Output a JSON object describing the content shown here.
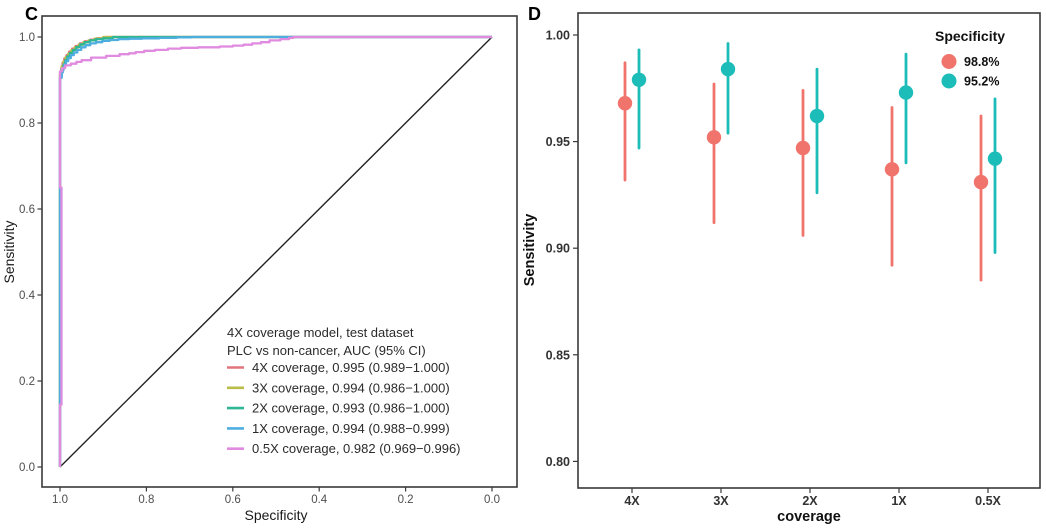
{
  "figure": {
    "panelC_label": "C",
    "panelD_label": "D"
  },
  "chart_data": [
    {
      "id": "C",
      "type": "line",
      "subtype": "roc",
      "xlabel": "Specificity",
      "ylabel": "Sensitivity",
      "x_reversed": true,
      "x_ticks": [
        "1.0",
        "0.8",
        "0.6",
        "0.4",
        "0.2",
        "0.0"
      ],
      "y_ticks": [
        "0.0",
        "0.2",
        "0.4",
        "0.6",
        "0.8",
        "1.0"
      ],
      "diagonal_reference_line": true,
      "legend": {
        "title_lines": [
          "4X coverage model, test dataset",
          "PLC vs non-cancer, AUC (95% CI)"
        ]
      },
      "series": [
        {
          "name": "4X coverage",
          "label": "4X coverage, 0.995 (0.989−1.000)",
          "auc": "0.995",
          "ci": "0.989−1.000",
          "color": "#E2747C",
          "points": [
            [
              1,
              0
            ],
            [
              1,
              0.912
            ],
            [
              0.997,
              0.928
            ],
            [
              0.994,
              0.94
            ],
            [
              0.99,
              0.95
            ],
            [
              0.985,
              0.958
            ],
            [
              0.979,
              0.966
            ],
            [
              0.972,
              0.973
            ],
            [
              0.964,
              0.979
            ],
            [
              0.954,
              0.985
            ],
            [
              0.943,
              0.99
            ],
            [
              0.93,
              0.994
            ],
            [
              0.915,
              0.997
            ],
            [
              0.895,
              1.0
            ],
            [
              0,
              1
            ]
          ]
        },
        {
          "name": "3X coverage",
          "label": "3X coverage, 0.994 (0.986−1.000)",
          "auc": "0.994",
          "ci": "0.986−1.000",
          "color": "#B9BE4B",
          "points": [
            [
              1,
              0
            ],
            [
              1,
              0.918
            ],
            [
              0.996,
              0.932
            ],
            [
              0.992,
              0.943
            ],
            [
              0.987,
              0.953
            ],
            [
              0.981,
              0.961
            ],
            [
              0.974,
              0.969
            ],
            [
              0.966,
              0.976
            ],
            [
              0.957,
              0.982
            ],
            [
              0.946,
              0.988
            ],
            [
              0.934,
              0.992
            ],
            [
              0.92,
              0.996
            ],
            [
              0.9,
              1.0
            ],
            [
              0,
              1
            ]
          ]
        },
        {
          "name": "2X coverage",
          "label": "2X coverage, 0.993 (0.986−1.000)",
          "auc": "0.993",
          "ci": "0.986−1.000",
          "color": "#2FB693",
          "points": [
            [
              1,
              0
            ],
            [
              1,
              0.908
            ],
            [
              0.996,
              0.924
            ],
            [
              0.992,
              0.936
            ],
            [
              0.988,
              0.946
            ],
            [
              0.983,
              0.955
            ],
            [
              0.977,
              0.963
            ],
            [
              0.97,
              0.97
            ],
            [
              0.962,
              0.977
            ],
            [
              0.953,
              0.983
            ],
            [
              0.943,
              0.988
            ],
            [
              0.931,
              0.992
            ],
            [
              0.917,
              0.995
            ],
            [
              0.9,
              0.997
            ],
            [
              0.878,
              1.0
            ],
            [
              0,
              1
            ]
          ]
        },
        {
          "name": "1X coverage",
          "label": "1X coverage, 0.994 (0.988−0.999)",
          "auc": "0.994",
          "ci": "0.988−0.999",
          "color": "#4FAEE0",
          "points": [
            [
              1,
              0
            ],
            [
              1,
              0.905
            ],
            [
              0.996,
              0.918
            ],
            [
              0.993,
              0.928
            ],
            [
              0.99,
              0.936
            ],
            [
              0.986,
              0.944
            ],
            [
              0.981,
              0.951
            ],
            [
              0.975,
              0.958
            ],
            [
              0.968,
              0.964
            ],
            [
              0.96,
              0.97
            ],
            [
              0.951,
              0.976
            ],
            [
              0.941,
              0.981
            ],
            [
              0.93,
              0.985
            ],
            [
              0.917,
              0.988
            ],
            [
              0.902,
              0.991
            ],
            [
              0.885,
              0.993
            ],
            [
              0.865,
              0.995
            ],
            [
              0.84,
              0.996
            ],
            [
              0.81,
              0.997
            ],
            [
              0.77,
              0.998
            ],
            [
              0.73,
              0.999
            ],
            [
              0.695,
              1.0
            ],
            [
              0,
              1
            ]
          ]
        },
        {
          "name": "0.5X coverage",
          "label": "0.5X coverage, 0.982 (0.969−0.996)",
          "auc": "0.982",
          "ci": "0.969−0.996",
          "color": "#E08BE0",
          "points": [
            [
              1,
              0
            ],
            [
              1,
              0.145
            ],
            [
              0.9965,
              0.145
            ],
            [
              0.9965,
              0.65
            ],
            [
              1,
              0.65
            ],
            [
              1,
              0.92
            ],
            [
              0.995,
              0.928
            ],
            [
              0.988,
              0.934
            ],
            [
              0.975,
              0.938
            ],
            [
              0.962,
              0.942
            ],
            [
              0.95,
              0.946
            ],
            [
              0.935,
              0.946
            ],
            [
              0.928,
              0.952
            ],
            [
              0.9,
              0.952
            ],
            [
              0.893,
              0.956
            ],
            [
              0.868,
              0.956
            ],
            [
              0.862,
              0.96
            ],
            [
              0.84,
              0.962
            ],
            [
              0.825,
              0.965
            ],
            [
              0.805,
              0.968
            ],
            [
              0.78,
              0.97
            ],
            [
              0.75,
              0.973
            ],
            [
              0.72,
              0.975
            ],
            [
              0.68,
              0.976
            ],
            [
              0.63,
              0.978
            ],
            [
              0.6,
              0.98
            ],
            [
              0.575,
              0.982
            ],
            [
              0.555,
              0.985
            ],
            [
              0.535,
              0.988
            ],
            [
              0.515,
              0.992
            ],
            [
              0.49,
              0.995
            ],
            [
              0.47,
              0.998
            ],
            [
              0.46,
              1.0
            ],
            [
              0,
              1
            ]
          ]
        }
      ]
    },
    {
      "id": "D",
      "type": "scatter",
      "subtype": "point-errorbar",
      "xlabel": "coverage",
      "ylabel": "Sensitivity",
      "categories": [
        "4X",
        "3X",
        "2X",
        "1X",
        "0.5X"
      ],
      "y_ticks": [
        "1.00",
        "0.95",
        "0.90",
        "0.85",
        "0.80"
      ],
      "ylim": [
        0.785,
        1.005
      ],
      "legend": {
        "title": "Specificity"
      },
      "series": [
        {
          "name": "98.8%",
          "color": "#F0736C",
          "center": [
            0.968,
            0.952,
            0.947,
            0.937,
            0.931
          ],
          "lower": [
            0.932,
            0.912,
            0.906,
            0.892,
            0.885
          ],
          "upper": [
            0.987,
            0.977,
            0.974,
            0.966,
            0.962
          ]
        },
        {
          "name": "95.2%",
          "color": "#1CBCB8",
          "center": [
            0.979,
            0.984,
            0.962,
            0.973,
            0.942
          ],
          "lower": [
            0.947,
            0.954,
            0.926,
            0.94,
            0.898
          ],
          "upper": [
            0.993,
            0.996,
            0.984,
            0.991,
            0.97
          ]
        }
      ]
    }
  ]
}
